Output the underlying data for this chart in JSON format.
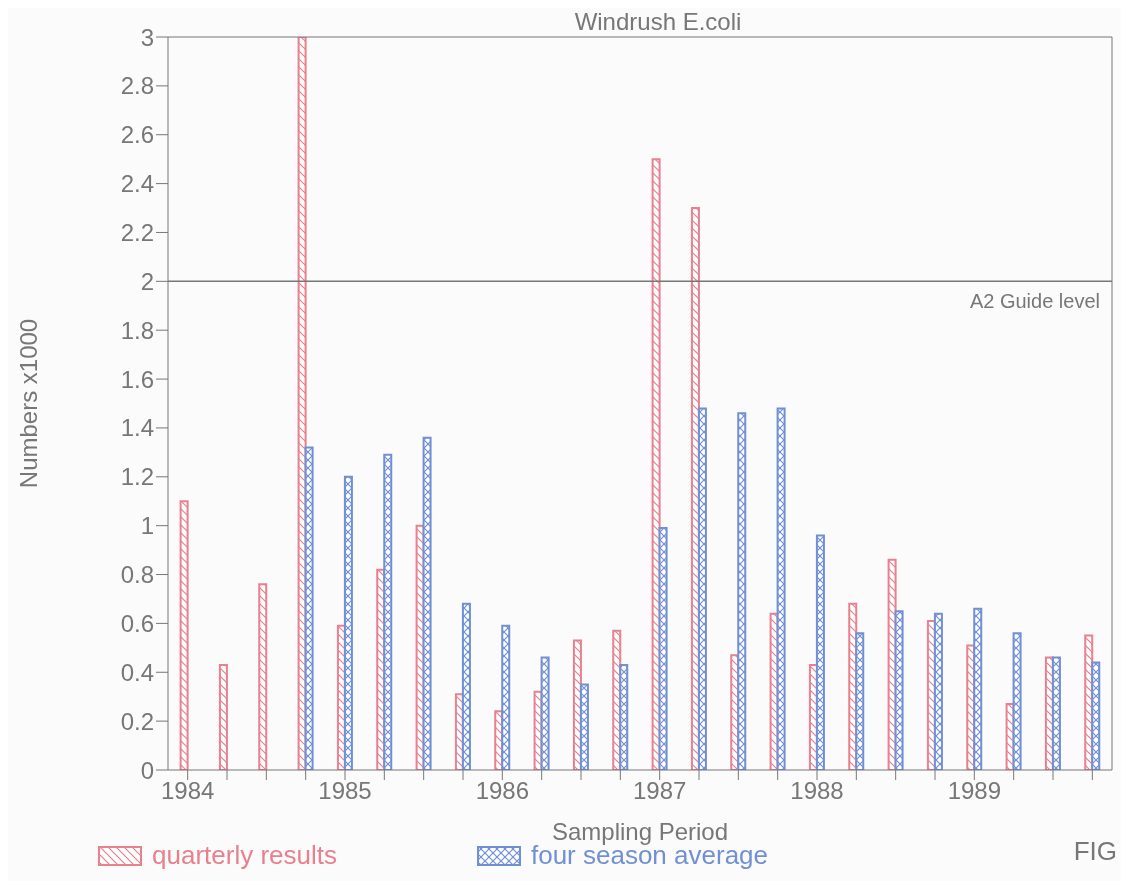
{
  "chart_data": {
    "type": "bar",
    "title": "Windrush E.coli",
    "xlabel": "Sampling Period",
    "ylabel": "Numbers x1000",
    "categories": [
      "1984",
      null,
      null,
      null,
      "1985",
      null,
      null,
      null,
      "1986",
      null,
      null,
      null,
      "1987",
      null,
      null,
      null,
      "1988",
      null,
      null,
      null,
      "1989",
      null,
      null,
      null
    ],
    "series": [
      {
        "name": "quarterly results",
        "color": "#e8808e",
        "values": [
          1.1,
          0.43,
          0.76,
          3.0,
          0.59,
          0.82,
          1.0,
          0.31,
          0.24,
          0.32,
          0.53,
          0.57,
          2.5,
          2.3,
          0.47,
          0.64,
          0.43,
          0.68,
          0.86,
          0.61,
          0.51,
          0.27,
          0.46,
          0.55
        ]
      },
      {
        "name": "four season average",
        "color": "#7190d4",
        "values": [
          null,
          null,
          null,
          1.32,
          1.2,
          1.29,
          1.36,
          0.68,
          0.59,
          0.46,
          0.35,
          0.43,
          0.99,
          1.48,
          1.46,
          1.48,
          0.96,
          0.56,
          0.65,
          0.64,
          0.66,
          0.56,
          0.46,
          0.44
        ]
      }
    ],
    "ylim": [
      0,
      3
    ],
    "yticks": [
      0,
      0.2,
      0.4,
      0.6,
      0.8,
      1,
      1.2,
      1.4,
      1.6,
      1.8,
      2,
      2.2,
      2.4,
      2.6,
      2.8,
      3
    ],
    "grid": false,
    "legend": "bottom",
    "ref_lines": [
      {
        "axis": "y",
        "value": 2,
        "label": "A2 Guide level"
      }
    ],
    "annotations": [
      "FIG"
    ]
  }
}
